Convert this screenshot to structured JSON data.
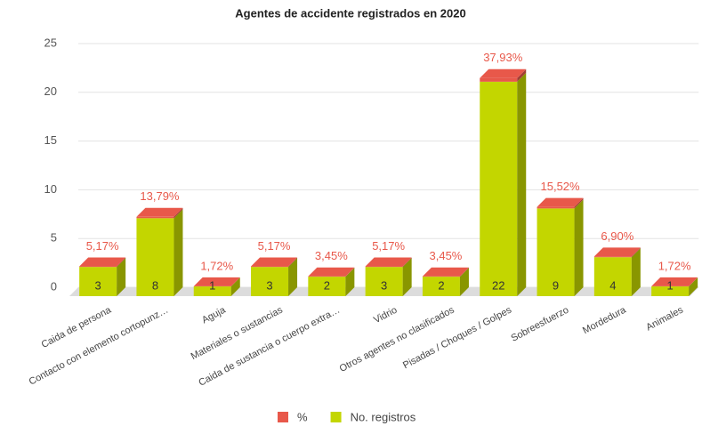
{
  "chart_data": {
    "type": "bar3d_stacked",
    "title": "Agentes de accidente registrados en 2020",
    "categories": [
      "Caida de persona",
      "Contacto con elemento cortopunz…",
      "Aguja",
      "Materiales o sustancias",
      "Caida de sustancia o cuerpo extra…",
      "Vidrio",
      "Otros agentes no clasificados",
      "Pisadas / Choques / Golpes",
      "Sobreesfuerzo",
      "Mordedura",
      "Animales"
    ],
    "series": [
      {
        "name": "No. registros",
        "color": "#c3d600",
        "values": [
          3,
          8,
          1,
          3,
          2,
          3,
          2,
          22,
          9,
          4,
          1
        ]
      },
      {
        "name": "%",
        "color": "#e8584a",
        "values": [
          0.0517,
          0.1379,
          0.0172,
          0.0517,
          0.0345,
          0.0517,
          0.0345,
          0.3793,
          0.1552,
          0.069,
          0.0172
        ],
        "value_labels": [
          "5,17%",
          "13,79%",
          "1,72%",
          "5,17%",
          "3,45%",
          "5,17%",
          "3,45%",
          "37,93%",
          "15,52%",
          "6,90%",
          "1,72%"
        ]
      }
    ],
    "ylim": [
      0,
      25
    ],
    "yticks": [
      0,
      5,
      10,
      15,
      20,
      25
    ],
    "grid": true,
    "legend": "bottom"
  }
}
